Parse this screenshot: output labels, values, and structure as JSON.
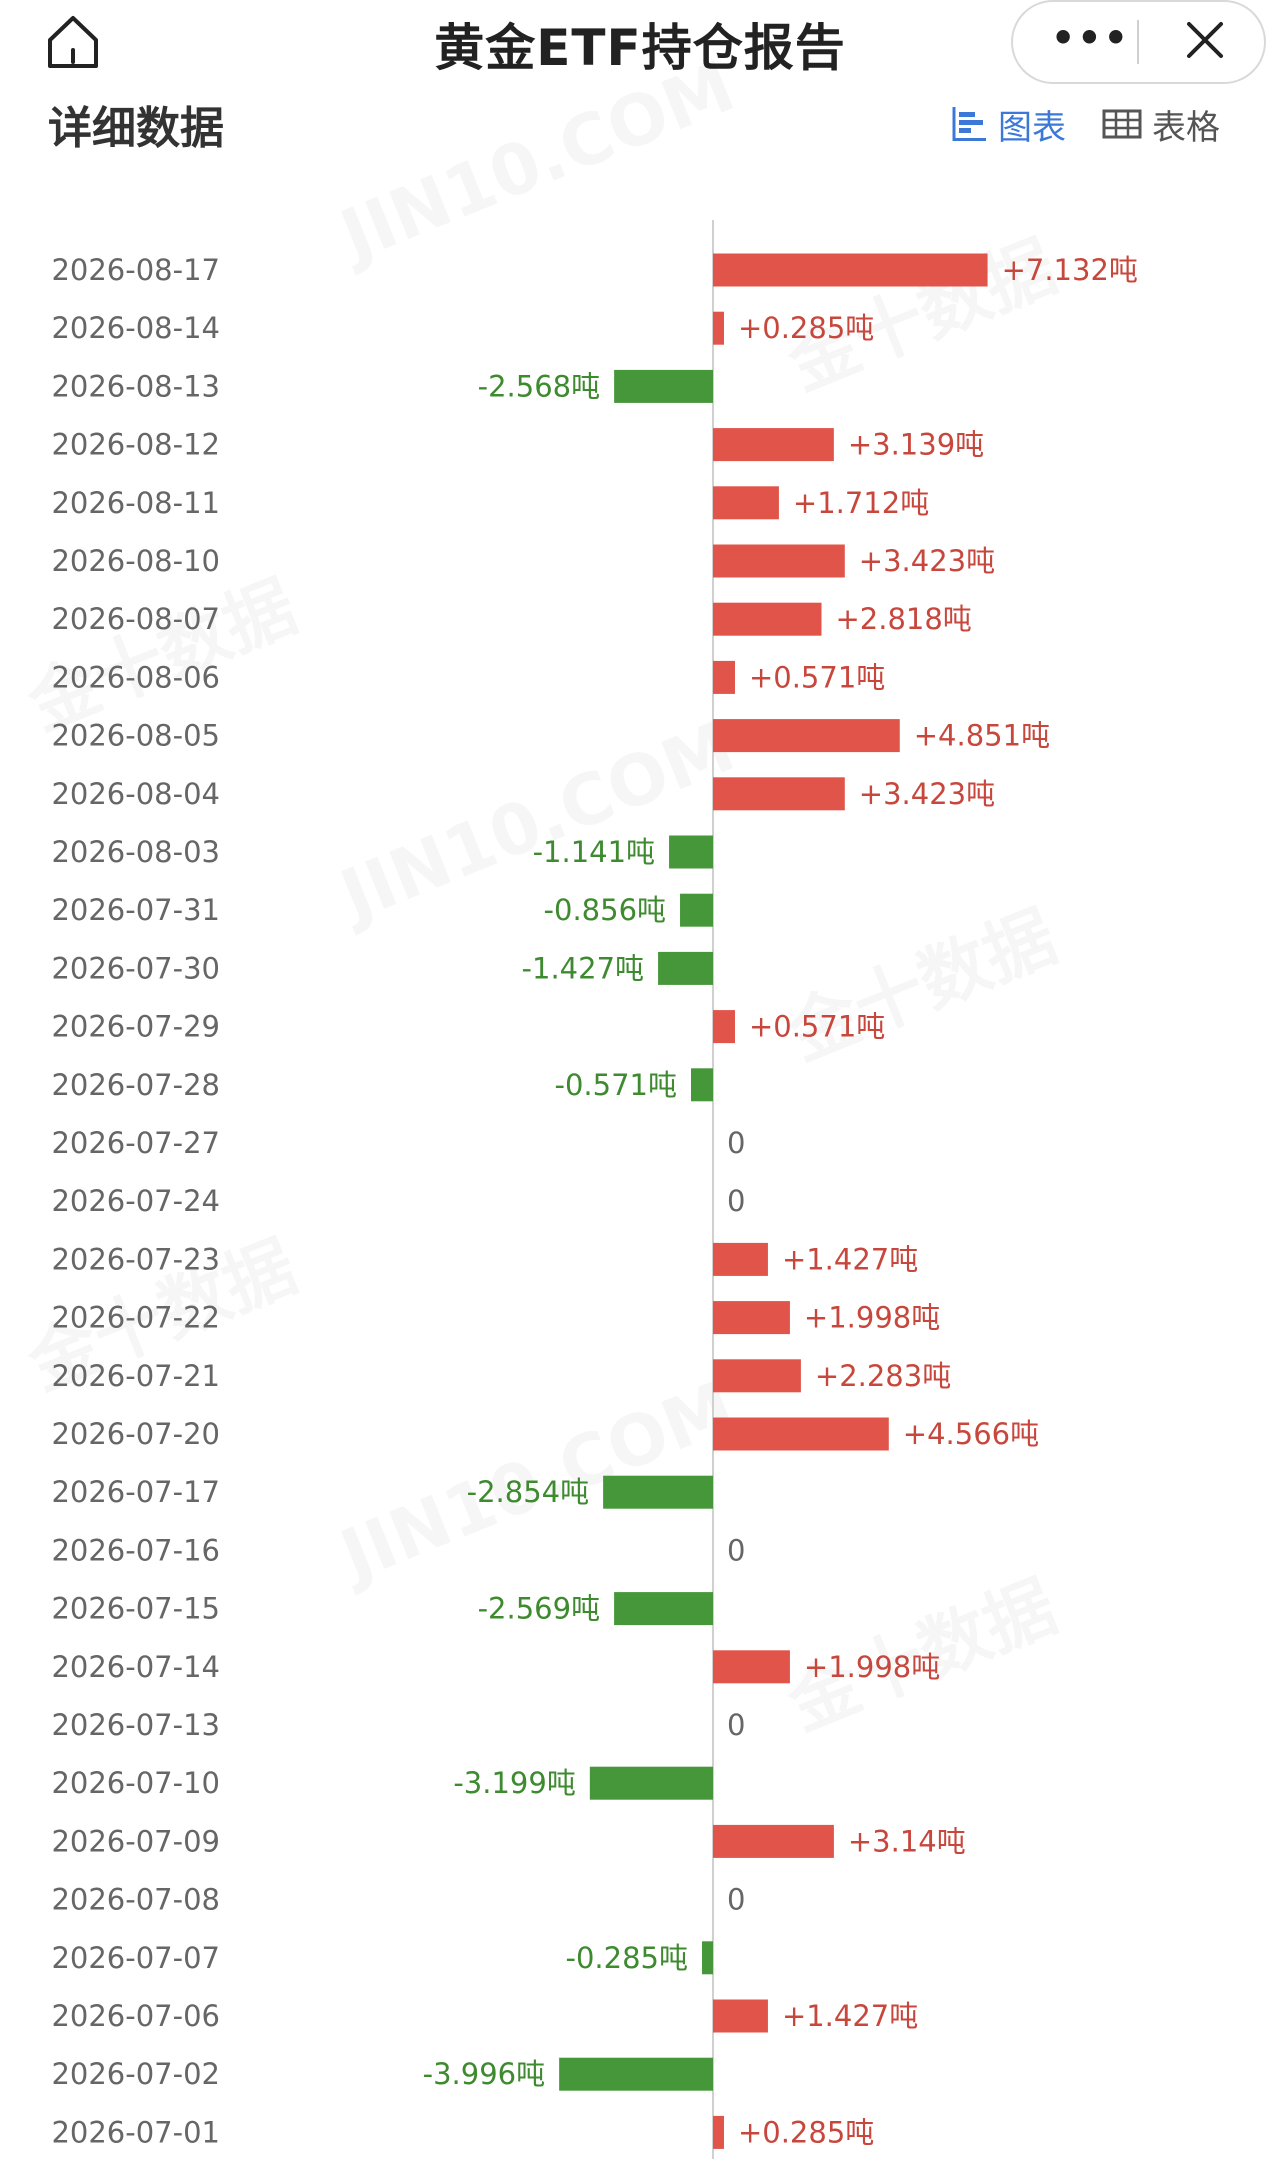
{
  "header": {
    "title": "黄金ETF持仓报告",
    "more_label": "•••",
    "section_title": "详细数据"
  },
  "view_toggle": {
    "chart_label": "图表",
    "table_label": "表格",
    "active": "chart"
  },
  "watermarks": [
    "JIN10.COM",
    "金十数据"
  ],
  "colors": {
    "positive": "#e05449",
    "negative": "#46963a",
    "positive_text": "#c8473d",
    "negative_text": "#3d8a2f",
    "zero_text": "#666666",
    "accent": "#3c78d8"
  },
  "chart_data": {
    "type": "bar",
    "orientation": "horizontal",
    "unit": "吨",
    "categories": [
      "2026-08-17",
      "2026-08-14",
      "2026-08-13",
      "2026-08-12",
      "2026-08-11",
      "2026-08-10",
      "2026-08-07",
      "2026-08-06",
      "2026-08-05",
      "2026-08-04",
      "2026-08-03",
      "2026-07-31",
      "2026-07-30",
      "2026-07-29",
      "2026-07-28",
      "2026-07-27",
      "2026-07-24",
      "2026-07-23",
      "2026-07-22",
      "2026-07-21",
      "2026-07-20",
      "2026-07-17",
      "2026-07-16",
      "2026-07-15",
      "2026-07-14",
      "2026-07-13",
      "2026-07-10",
      "2026-07-09",
      "2026-07-08",
      "2026-07-07",
      "2026-07-06",
      "2026-07-02",
      "2026-07-01"
    ],
    "values": [
      7.132,
      0.285,
      -2.568,
      3.139,
      1.712,
      3.423,
      2.818,
      0.571,
      4.851,
      3.423,
      -1.141,
      -0.856,
      -1.427,
      0.571,
      -0.571,
      0,
      0,
      1.427,
      1.998,
      2.283,
      4.566,
      -2.854,
      0,
      -2.569,
      1.998,
      0,
      -3.199,
      3.14,
      0,
      -0.285,
      1.427,
      -3.996,
      0.285
    ],
    "labels": [
      "+7.132吨",
      "+0.285吨",
      "-2.568吨",
      "+3.139吨",
      "+1.712吨",
      "+3.423吨",
      "+2.818吨",
      "+0.571吨",
      "+4.851吨",
      "+3.423吨",
      "-1.141吨",
      "-0.856吨",
      "-1.427吨",
      "+0.571吨",
      "-0.571吨",
      "0",
      "0",
      "+1.427吨",
      "+1.998吨",
      "+2.283吨",
      "+4.566吨",
      "-2.854吨",
      "0",
      "-2.569吨",
      "+1.998吨",
      "0",
      "-3.199吨",
      "+3.14吨",
      "0",
      "-0.285吨",
      "+1.427吨",
      "-3.996吨",
      "+0.285吨"
    ],
    "xlim": [
      -5,
      8
    ],
    "grid": false,
    "legend": "none"
  }
}
